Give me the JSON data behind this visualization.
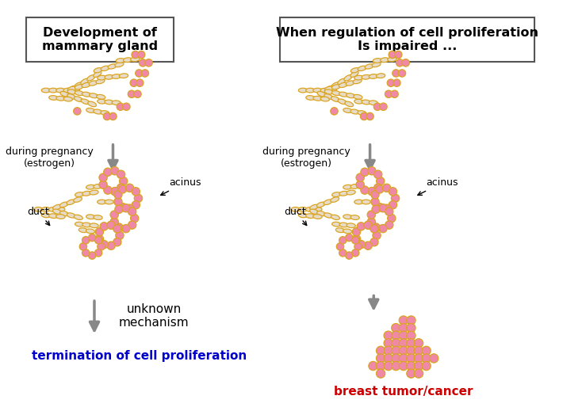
{
  "bg_color": "#ffffff",
  "cell_outline": "#DAA520",
  "cell_fill_duct": "#e8dcc8",
  "cell_fill_pink": "#f088a8",
  "arrow_color": "#888888",
  "box1_title": "Development of\nmammary gland",
  "box2_title": "When regulation of cell proliferation\nIs impaired ...",
  "label_pregnancy": "during pregnancy\n(estrogen)",
  "label_acinus": "acinus",
  "label_duct": "duct",
  "label_unknown": "unknown\nmechanism",
  "label_termination": "termination of cell proliferation",
  "label_cancer": "breast tumor/cancer",
  "termination_color": "#0000cc",
  "cancer_color": "#cc0000",
  "figsize": [
    7.1,
    5.19
  ],
  "dpi": 100
}
